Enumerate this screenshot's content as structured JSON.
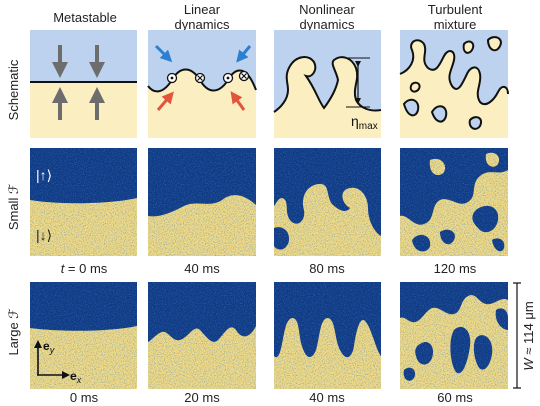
{
  "columns": [
    {
      "title_lines": [
        "Metastable"
      ]
    },
    {
      "title_lines": [
        "Linear",
        "dynamics"
      ]
    },
    {
      "title_lines": [
        "Nonlinear",
        "dynamics"
      ]
    },
    {
      "title_lines": [
        "Turbulent",
        "mixture"
      ]
    }
  ],
  "rows": {
    "schematic": "Schematic",
    "small_prefix": "Small ",
    "large_prefix": "Large ",
    "symbol": "ℱ"
  },
  "state_labels": {
    "up": "|↑⟩",
    "down": "|↓⟩"
  },
  "eta_label": "η",
  "eta_sub": "max",
  "small_times": [
    {
      "prefix": "t",
      "text": " = 0 ms"
    },
    {
      "prefix": "",
      "text": "40 ms"
    },
    {
      "prefix": "",
      "text": "80 ms"
    },
    {
      "prefix": "",
      "text": "120 ms"
    }
  ],
  "large_times": [
    "0 ms",
    "20 ms",
    "40 ms",
    "60 ms"
  ],
  "axes": {
    "ey": "e",
    "ey_sub": "y",
    "ex": "e",
    "ex_sub": "x"
  },
  "width_label": {
    "symbol": "W",
    "text": " ≈ 114 μm"
  },
  "colors": {
    "schematic_blue": "#bcd2ee",
    "schematic_yellow": "#fbefc2",
    "image_blue": "#103a84",
    "image_yellow": "#f1da84",
    "arrow_gray": "#6d6d6d",
    "arrow_blue": "#2d7fd0",
    "arrow_red": "#e2553a"
  }
}
